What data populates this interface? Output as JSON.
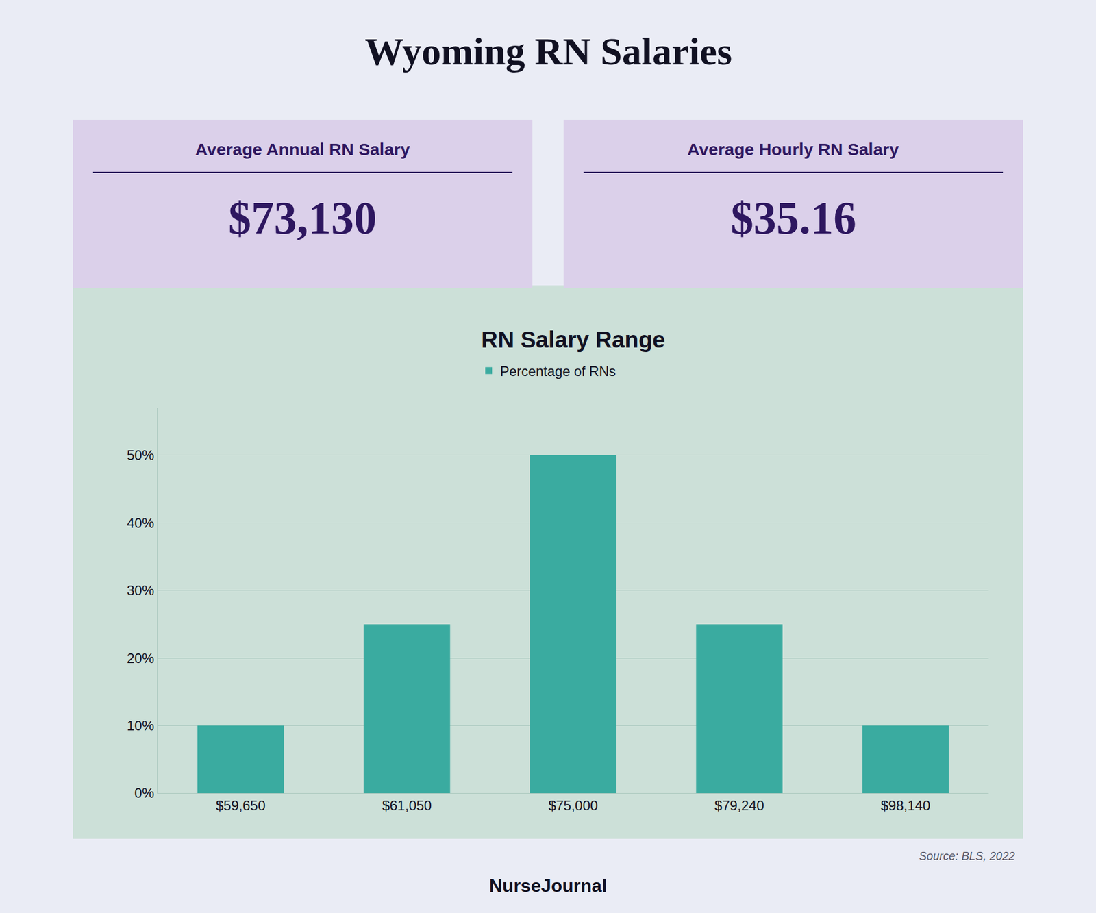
{
  "chart_data": {
    "type": "bar",
    "title": "Wyoming RN Salaries",
    "subtitle": "RN Salary Range",
    "annotations": [
      "Average Annual RN Salary",
      "$73,130",
      "Average Hourly RN Salary",
      "$35.16",
      "Source: BLS, 2022",
      "NurseJournal"
    ],
    "categories": [
      "$59,650",
      "$61,050",
      "$75,000",
      "$79,240",
      "$98,140"
    ],
    "series": [
      {
        "name": "Percentage of RNs",
        "color": "#3aaba0",
        "values": [
          10,
          25,
          50,
          25,
          10
        ]
      }
    ],
    "ylim": [
      0,
      57
    ],
    "yticks": [
      {
        "value": 0,
        "label": "0%"
      },
      {
        "value": 10,
        "label": "10%"
      },
      {
        "value": 20,
        "label": "20%"
      },
      {
        "value": 30,
        "label": "30%"
      },
      {
        "value": 40,
        "label": "40%"
      },
      {
        "value": 50,
        "label": "50%"
      }
    ],
    "grid": true,
    "legend": "top"
  }
}
